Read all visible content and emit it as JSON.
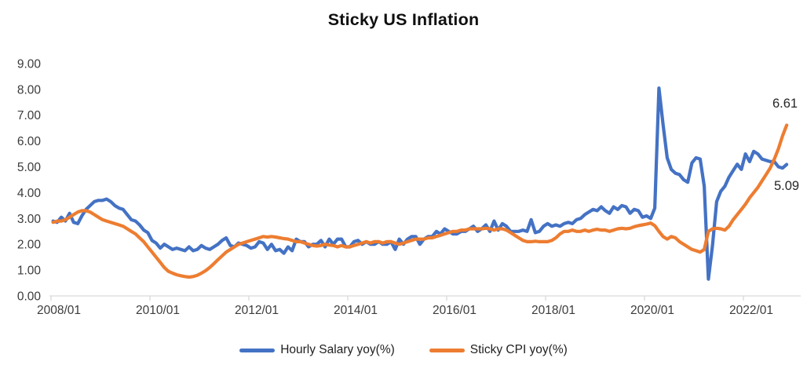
{
  "chart_data": {
    "type": "line",
    "title": "Sticky US Inflation",
    "x_start": "2008/01",
    "x_end": "2022/11",
    "frequency": "monthly",
    "x_tick_labels": [
      "2008/01",
      "2010/01",
      "2012/01",
      "2014/01",
      "2016/01",
      "2018/01",
      "2020/01",
      "2022/01"
    ],
    "y_tick_labels": [
      "9.00",
      "8.00",
      "7.00",
      "6.00",
      "5.00",
      "4.00",
      "3.00",
      "2.00",
      "1.00",
      "0.00"
    ],
    "ylim": [
      0,
      9
    ],
    "grid": false,
    "legend_position": "bottom",
    "axis_color": "#D9D9D9",
    "label_color": "#3b3b3b",
    "series": [
      {
        "name": "Hourly Salary yoy(%)",
        "color": "#4472C4",
        "end_label": "5.09",
        "values": [
          2.9,
          2.85,
          3.05,
          2.9,
          3.2,
          2.85,
          2.8,
          3.1,
          3.35,
          3.5,
          3.65,
          3.7,
          3.7,
          3.75,
          3.65,
          3.5,
          3.4,
          3.35,
          3.15,
          2.95,
          2.9,
          2.75,
          2.55,
          2.45,
          2.15,
          2.05,
          1.85,
          2.0,
          1.9,
          1.8,
          1.85,
          1.8,
          1.75,
          1.9,
          1.75,
          1.8,
          1.95,
          1.85,
          1.8,
          1.9,
          2.0,
          2.15,
          2.25,
          1.95,
          1.9,
          2.05,
          2.0,
          1.95,
          1.85,
          1.9,
          2.1,
          2.05,
          1.8,
          2.0,
          1.75,
          1.8,
          1.65,
          1.9,
          1.75,
          2.2,
          2.1,
          2.1,
          1.9,
          2.0,
          2.0,
          2.15,
          1.9,
          2.2,
          2.0,
          2.2,
          2.2,
          1.9,
          1.9,
          2.1,
          2.15,
          2.0,
          2.1,
          2.0,
          2.0,
          2.1,
          2.0,
          2.0,
          2.1,
          1.8,
          2.2,
          2.0,
          2.2,
          2.3,
          2.3,
          2.0,
          2.2,
          2.3,
          2.3,
          2.5,
          2.4,
          2.6,
          2.5,
          2.4,
          2.4,
          2.5,
          2.5,
          2.6,
          2.7,
          2.5,
          2.6,
          2.75,
          2.5,
          2.9,
          2.55,
          2.8,
          2.7,
          2.5,
          2.5,
          2.5,
          2.55,
          2.5,
          2.95,
          2.45,
          2.5,
          2.7,
          2.8,
          2.7,
          2.75,
          2.7,
          2.8,
          2.85,
          2.8,
          2.95,
          3.0,
          3.15,
          3.25,
          3.35,
          3.3,
          3.45,
          3.3,
          3.2,
          3.45,
          3.35,
          3.5,
          3.45,
          3.2,
          3.35,
          3.3,
          3.05,
          3.1,
          3.0,
          3.4,
          8.05,
          6.65,
          5.35,
          4.9,
          4.75,
          4.7,
          4.5,
          4.4,
          5.15,
          5.35,
          5.3,
          4.25,
          0.65,
          1.95,
          3.65,
          4.05,
          4.25,
          4.6,
          4.85,
          5.1,
          4.9,
          5.5,
          5.2,
          5.6,
          5.5,
          5.3,
          5.25,
          5.2,
          5.2,
          5.0,
          4.95,
          5.09
        ]
      },
      {
        "name": "Sticky CPI yoy(%)",
        "color": "#ED7D31",
        "end_label": "6.61",
        "values": [
          2.85,
          2.9,
          2.9,
          2.95,
          3.05,
          3.15,
          3.25,
          3.3,
          3.3,
          3.25,
          3.15,
          3.05,
          2.95,
          2.9,
          2.85,
          2.8,
          2.75,
          2.7,
          2.6,
          2.5,
          2.4,
          2.25,
          2.1,
          1.9,
          1.7,
          1.5,
          1.3,
          1.1,
          0.95,
          0.88,
          0.82,
          0.78,
          0.75,
          0.73,
          0.75,
          0.8,
          0.88,
          0.98,
          1.1,
          1.25,
          1.4,
          1.55,
          1.7,
          1.8,
          1.9,
          2.0,
          2.05,
          2.1,
          2.15,
          2.2,
          2.25,
          2.3,
          2.28,
          2.3,
          2.28,
          2.25,
          2.22,
          2.2,
          2.15,
          2.1,
          2.1,
          2.05,
          2.0,
          1.95,
          1.93,
          1.95,
          2.0,
          1.97,
          1.95,
          1.9,
          1.95,
          1.9,
          1.9,
          1.95,
          2.0,
          2.05,
          2.1,
          2.05,
          2.1,
          2.1,
          2.05,
          2.1,
          2.1,
          2.05,
          2.0,
          2.05,
          2.1,
          2.15,
          2.2,
          2.2,
          2.2,
          2.25,
          2.25,
          2.3,
          2.35,
          2.4,
          2.45,
          2.5,
          2.5,
          2.55,
          2.55,
          2.6,
          2.6,
          2.6,
          2.6,
          2.62,
          2.6,
          2.55,
          2.6,
          2.6,
          2.55,
          2.45,
          2.35,
          2.25,
          2.15,
          2.1,
          2.1,
          2.12,
          2.1,
          2.1,
          2.1,
          2.15,
          2.25,
          2.4,
          2.5,
          2.5,
          2.55,
          2.5,
          2.5,
          2.55,
          2.5,
          2.55,
          2.58,
          2.55,
          2.55,
          2.5,
          2.55,
          2.6,
          2.62,
          2.6,
          2.62,
          2.68,
          2.72,
          2.75,
          2.78,
          2.82,
          2.72,
          2.5,
          2.3,
          2.2,
          2.3,
          2.25,
          2.1,
          2.0,
          1.9,
          1.8,
          1.75,
          1.7,
          1.8,
          2.5,
          2.6,
          2.62,
          2.6,
          2.55,
          2.7,
          2.95,
          3.15,
          3.35,
          3.55,
          3.8,
          4.0,
          4.2,
          4.45,
          4.7,
          4.95,
          5.3,
          5.7,
          6.2,
          6.61
        ]
      }
    ]
  }
}
